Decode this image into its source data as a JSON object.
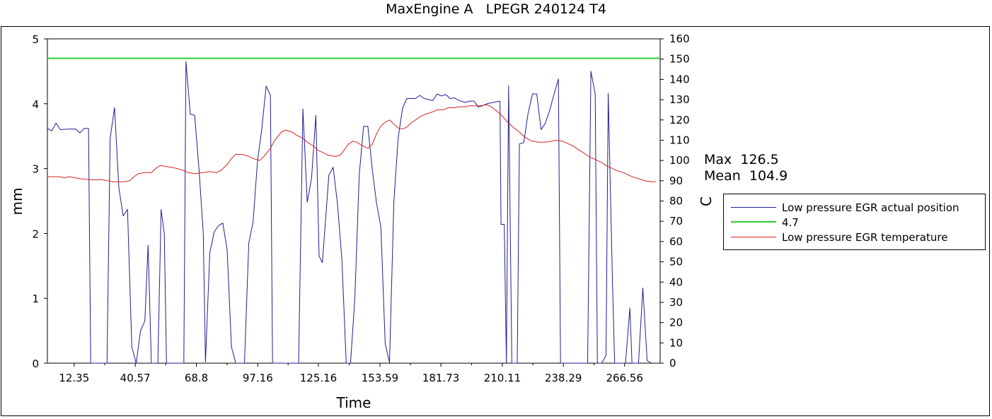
{
  "chart_data": {
    "type": "line",
    "title": "MaxEngine A   LPEGR 240124 T4",
    "xlabel": "Time",
    "ylabel_left": "mm",
    "ylabel_right": "C",
    "xlim": [
      0,
      283
    ],
    "ylim_left": [
      0,
      5
    ],
    "ylim_right": [
      0,
      160
    ],
    "x_ticks": [
      12.35,
      40.57,
      68.8,
      97.16,
      125.16,
      153.59,
      181.73,
      210.11,
      238.29,
      266.56
    ],
    "y_ticks_left": [
      0,
      1,
      2,
      3,
      4,
      5
    ],
    "y_ticks_right": [
      0,
      10,
      20,
      30,
      40,
      50,
      60,
      70,
      80,
      90,
      100,
      110,
      120,
      130,
      140,
      150,
      160
    ],
    "grid": false,
    "legend_position": "right",
    "series": [
      {
        "name": "Low pressure EGR actual position",
        "axis": "left",
        "color": "#1e1e96",
        "points": [
          [
            0,
            3.62
          ],
          [
            2,
            3.58
          ],
          [
            4,
            3.7
          ],
          [
            6,
            3.6
          ],
          [
            10,
            3.61
          ],
          [
            13,
            3.61
          ],
          [
            15,
            3.55
          ],
          [
            17,
            3.62
          ],
          [
            19,
            3.62
          ],
          [
            20,
            0
          ],
          [
            27,
            0
          ],
          [
            27.5,
            0
          ],
          [
            29,
            3.47
          ],
          [
            31,
            3.94
          ],
          [
            33,
            2.7
          ],
          [
            35,
            2.27
          ],
          [
            37,
            2.37
          ],
          [
            39,
            0.25
          ],
          [
            41,
            0
          ],
          [
            43,
            0.5
          ],
          [
            45,
            0.65
          ],
          [
            46.5,
            1.82
          ],
          [
            48,
            0
          ],
          [
            51,
            0
          ],
          [
            52.5,
            2.37
          ],
          [
            54,
            2.0
          ],
          [
            55,
            0
          ],
          [
            62,
            0
          ],
          [
            63,
            0
          ],
          [
            64,
            4.65
          ],
          [
            66,
            3.84
          ],
          [
            68,
            3.82
          ],
          [
            70,
            3.0
          ],
          [
            72,
            2.0
          ],
          [
            73,
            0.02
          ],
          [
            75,
            1.7
          ],
          [
            77,
            2.02
          ],
          [
            79,
            2.12
          ],
          [
            81,
            2.16
          ],
          [
            83,
            1.75
          ],
          [
            85,
            0.25
          ],
          [
            87,
            0
          ],
          [
            91,
            0
          ],
          [
            93,
            1.85
          ],
          [
            95,
            2.18
          ],
          [
            97,
            3.1
          ],
          [
            99,
            3.6
          ],
          [
            101,
            4.27
          ],
          [
            103,
            4.13
          ],
          [
            104,
            0
          ],
          [
            116,
            0
          ],
          [
            118,
            3.92
          ],
          [
            120,
            2.48
          ],
          [
            122,
            2.85
          ],
          [
            124,
            3.82
          ],
          [
            125.5,
            1.65
          ],
          [
            127,
            1.55
          ],
          [
            130,
            2.9
          ],
          [
            132,
            3.02
          ],
          [
            134,
            2.45
          ],
          [
            136,
            1.6
          ],
          [
            138,
            0
          ],
          [
            140,
            0
          ],
          [
            142,
            1.0
          ],
          [
            144,
            2.9
          ],
          [
            146,
            3.65
          ],
          [
            148,
            3.65
          ],
          [
            150,
            3.0
          ],
          [
            152,
            2.47
          ],
          [
            154,
            2.1
          ],
          [
            156,
            0.3
          ],
          [
            158,
            0.01
          ],
          [
            160,
            2.48
          ],
          [
            162,
            3.47
          ],
          [
            164,
            3.93
          ],
          [
            166,
            4.08
          ],
          [
            170,
            4.08
          ],
          [
            172,
            4.13
          ],
          [
            174,
            4.08
          ],
          [
            178,
            4.05
          ],
          [
            180,
            4.15
          ],
          [
            182,
            4.12
          ],
          [
            184,
            4.14
          ],
          [
            186,
            4.08
          ],
          [
            188,
            4.09
          ],
          [
            190,
            4.05
          ],
          [
            193,
            4.02
          ],
          [
            195,
            4.04
          ],
          [
            197,
            4.04
          ],
          [
            199,
            3.95
          ],
          [
            201,
            3.97
          ],
          [
            203,
            4.0
          ],
          [
            209,
            4.04
          ],
          [
            209.5,
            2.14
          ],
          [
            211,
            2.14
          ],
          [
            212,
            0
          ],
          [
            213,
            4.28
          ],
          [
            214.5,
            0
          ],
          [
            217,
            0
          ],
          [
            218,
            3.38
          ],
          [
            220,
            3.4
          ],
          [
            222,
            3.85
          ],
          [
            224,
            4.15
          ],
          [
            226,
            4.15
          ],
          [
            228,
            3.6
          ],
          [
            230,
            3.7
          ],
          [
            232,
            3.9
          ],
          [
            234,
            4.15
          ],
          [
            236,
            4.38
          ],
          [
            237,
            0
          ],
          [
            248,
            0
          ],
          [
            249.5,
            0
          ],
          [
            251,
            4.5
          ],
          [
            253,
            4.15
          ],
          [
            254,
            0
          ],
          [
            256,
            0
          ],
          [
            258,
            0.12
          ],
          [
            259,
            4.16
          ],
          [
            261,
            1.2
          ],
          [
            262,
            0
          ],
          [
            267,
            0
          ],
          [
            269,
            0.85
          ],
          [
            270,
            0
          ],
          [
            273,
            0
          ],
          [
            275,
            1.16
          ],
          [
            277,
            0.04
          ],
          [
            279,
            0
          ]
        ]
      },
      {
        "name": "4.7",
        "axis": "left",
        "color": "#33cc33",
        "points": [
          [
            0,
            4.7
          ],
          [
            283,
            4.7
          ]
        ]
      },
      {
        "name": "Low pressure EGR temperature",
        "axis": "right",
        "color": "#dd2222",
        "points": [
          [
            0,
            92
          ],
          [
            5,
            92
          ],
          [
            8,
            91.5
          ],
          [
            10,
            92
          ],
          [
            15,
            91
          ],
          [
            20,
            90.5
          ],
          [
            25,
            90.5
          ],
          [
            28,
            90
          ],
          [
            30,
            89.5
          ],
          [
            35,
            89.5
          ],
          [
            38,
            90
          ],
          [
            40,
            92
          ],
          [
            42,
            93.5
          ],
          [
            45,
            94
          ],
          [
            48,
            94
          ],
          [
            50,
            96
          ],
          [
            52,
            97.5
          ],
          [
            55,
            97
          ],
          [
            58,
            96.5
          ],
          [
            60,
            96
          ],
          [
            63,
            95
          ],
          [
            65,
            94
          ],
          [
            68,
            93.5
          ],
          [
            72,
            94
          ],
          [
            75,
            94.5
          ],
          [
            78,
            94
          ],
          [
            80,
            95
          ],
          [
            83,
            98
          ],
          [
            85,
            101
          ],
          [
            87,
            103
          ],
          [
            90,
            103
          ],
          [
            93,
            102
          ],
          [
            95,
            101
          ],
          [
            98,
            100
          ],
          [
            100,
            102
          ],
          [
            103,
            106
          ],
          [
            105,
            110
          ],
          [
            108,
            114
          ],
          [
            110,
            115
          ],
          [
            113,
            114
          ],
          [
            115,
            112.5
          ],
          [
            118,
            111
          ],
          [
            120,
            109
          ],
          [
            123,
            107
          ],
          [
            125,
            105
          ],
          [
            128,
            103.5
          ],
          [
            130,
            102.5
          ],
          [
            133,
            102
          ],
          [
            135,
            102.5
          ],
          [
            137,
            105
          ],
          [
            139,
            108
          ],
          [
            141,
            109.5
          ],
          [
            143,
            109
          ],
          [
            145,
            107.5
          ],
          [
            148,
            106
          ],
          [
            150,
            108
          ],
          [
            152,
            113
          ],
          [
            154,
            117
          ],
          [
            156,
            119
          ],
          [
            158,
            120
          ],
          [
            160,
            118
          ],
          [
            162,
            116
          ],
          [
            164,
            115.5
          ],
          [
            166,
            116.5
          ],
          [
            168,
            118.5
          ],
          [
            170,
            120
          ],
          [
            172,
            121.5
          ],
          [
            175,
            123
          ],
          [
            178,
            124
          ],
          [
            180,
            125
          ],
          [
            183,
            125
          ],
          [
            185,
            126
          ],
          [
            188,
            126
          ],
          [
            190,
            126.5
          ],
          [
            193,
            126.5
          ],
          [
            195,
            127
          ],
          [
            198,
            127
          ],
          [
            200,
            127
          ],
          [
            203,
            127.5
          ],
          [
            205,
            126.5
          ],
          [
            208,
            124
          ],
          [
            210,
            122
          ],
          [
            212,
            119.5
          ],
          [
            215,
            116.5
          ],
          [
            218,
            114
          ],
          [
            220,
            112
          ],
          [
            222,
            110.5
          ],
          [
            224,
            109.5
          ],
          [
            227,
            109
          ],
          [
            230,
            109
          ],
          [
            233,
            109.5
          ],
          [
            235,
            110
          ],
          [
            238,
            109.5
          ],
          [
            240,
            108.5
          ],
          [
            243,
            107
          ],
          [
            245,
            105.5
          ],
          [
            248,
            103.5
          ],
          [
            250,
            102
          ],
          [
            253,
            100.5
          ],
          [
            256,
            99
          ],
          [
            258,
            97.5
          ],
          [
            261,
            96
          ],
          [
            263,
            95
          ],
          [
            266,
            94
          ],
          [
            268,
            93
          ],
          [
            270,
            92
          ],
          [
            273,
            91
          ],
          [
            276,
            90
          ],
          [
            279,
            89.5
          ],
          [
            281,
            89.5
          ]
        ]
      }
    ],
    "annotations": {
      "max_label": "Max",
      "max_value": "126.5",
      "mean_label": "Mean",
      "mean_value": "104.9"
    }
  }
}
